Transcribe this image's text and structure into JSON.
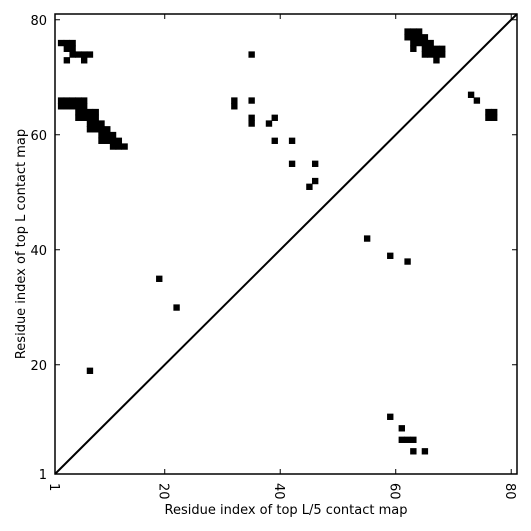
{
  "chart_data": {
    "type": "heatmap",
    "title": "",
    "xlabel": "Residue index of top L/5 contact map",
    "ylabel": "Residue index of top L contact map",
    "xlim": [
      1,
      81
    ],
    "ylim": [
      1,
      81
    ],
    "xticks": [
      1,
      20,
      40,
      60,
      80
    ],
    "yticks": [
      1,
      20,
      40,
      60,
      80
    ],
    "x_tick_labels": [
      "1",
      "20",
      "40",
      "60",
      "80"
    ],
    "y_tick_labels": [
      "1",
      "20",
      "40",
      "60",
      "80"
    ],
    "diagonal_line": true,
    "grid": false,
    "colors": {
      "contact": "#000000",
      "background": "#ffffff",
      "axes": "#000000"
    },
    "top_L_contacts": [
      [
        2,
        76
      ],
      [
        3,
        76
      ],
      [
        4,
        76
      ],
      [
        4,
        75
      ],
      [
        3,
        75
      ],
      [
        4,
        74
      ],
      [
        5,
        74
      ],
      [
        6,
        74
      ],
      [
        7,
        74
      ],
      [
        3,
        73
      ],
      [
        6,
        73
      ],
      [
        2,
        66
      ],
      [
        3,
        66
      ],
      [
        4,
        66
      ],
      [
        5,
        66
      ],
      [
        6,
        66
      ],
      [
        2,
        65
      ],
      [
        3,
        65
      ],
      [
        4,
        65
      ],
      [
        5,
        65
      ],
      [
        6,
        65
      ],
      [
        5,
        64
      ],
      [
        6,
        64
      ],
      [
        7,
        64
      ],
      [
        8,
        64
      ],
      [
        5,
        63
      ],
      [
        6,
        63
      ],
      [
        7,
        63
      ],
      [
        8,
        63
      ],
      [
        7,
        62
      ],
      [
        8,
        62
      ],
      [
        9,
        62
      ],
      [
        7,
        61
      ],
      [
        8,
        61
      ],
      [
        9,
        61
      ],
      [
        10,
        61
      ],
      [
        9,
        60
      ],
      [
        10,
        60
      ],
      [
        11,
        60
      ],
      [
        9,
        59
      ],
      [
        10,
        59
      ],
      [
        11,
        59
      ],
      [
        12,
        59
      ],
      [
        11,
        58
      ],
      [
        12,
        58
      ],
      [
        13,
        58
      ],
      [
        32,
        66
      ],
      [
        32,
        65
      ],
      [
        35,
        74
      ],
      [
        35,
        66
      ],
      [
        35,
        63
      ],
      [
        35,
        62
      ],
      [
        38,
        62
      ],
      [
        39,
        63
      ],
      [
        39,
        59
      ],
      [
        42,
        59
      ],
      [
        42,
        55
      ],
      [
        45,
        51
      ],
      [
        46,
        55
      ],
      [
        46,
        52
      ],
      [
        62,
        78
      ],
      [
        63,
        78
      ],
      [
        64,
        78
      ],
      [
        62,
        77
      ],
      [
        63,
        77
      ],
      [
        64,
        77
      ],
      [
        65,
        77
      ],
      [
        63,
        76
      ],
      [
        64,
        76
      ],
      [
        65,
        76
      ],
      [
        66,
        76
      ],
      [
        63,
        75
      ],
      [
        65,
        75
      ],
      [
        66,
        75
      ],
      [
        67,
        75
      ],
      [
        68,
        75
      ],
      [
        65,
        74
      ],
      [
        66,
        74
      ],
      [
        67,
        74
      ],
      [
        68,
        74
      ],
      [
        67,
        73
      ],
      [
        73,
        67
      ],
      [
        74,
        66
      ],
      [
        76,
        64
      ],
      [
        77,
        64
      ],
      [
        76,
        63
      ],
      [
        77,
        63
      ]
    ],
    "top_L5_contacts": [
      [
        19,
        35
      ],
      [
        22,
        30
      ],
      [
        55,
        42
      ],
      [
        59,
        39
      ],
      [
        62,
        38
      ],
      [
        7,
        19
      ],
      [
        59,
        11
      ],
      [
        61,
        9
      ],
      [
        61,
        7
      ],
      [
        62,
        7
      ],
      [
        63,
        7
      ],
      [
        63,
        5
      ],
      [
        65,
        5
      ]
    ]
  }
}
